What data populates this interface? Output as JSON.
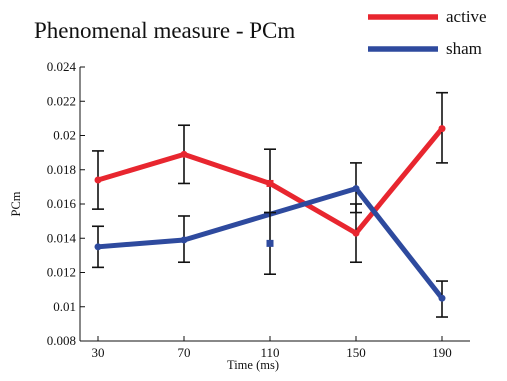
{
  "chart_data": {
    "type": "line",
    "title": "Phenomenal measure - PCm",
    "xlabel": "Time (ms)",
    "ylabel": "PCm",
    "categories": [
      "30",
      "70",
      "110",
      "150",
      "190"
    ],
    "ylim": [
      0.008,
      0.024
    ],
    "yticks": [
      "0.008",
      "0.01",
      "0.012",
      "0.014",
      "0.016",
      "0.018",
      "0.02",
      "0.022",
      "0.024"
    ],
    "legend_position": "top-right",
    "series": [
      {
        "name": "active",
        "color": "#e8262f",
        "values": [
          0.0174,
          0.0189,
          0.0172,
          0.0143,
          0.0204
        ],
        "err_low": [
          0.0157,
          0.0172,
          0.0155,
          0.0126,
          0.0184
        ],
        "err_high": [
          0.0191,
          0.0206,
          0.0192,
          0.016,
          0.0225
        ],
        "markers": [
          "circle",
          "circle",
          "square",
          "circle",
          "circle"
        ],
        "line_breaks_at": []
      },
      {
        "name": "sham",
        "color": "#2e4a9e",
        "values": [
          0.0135,
          0.0139,
          0.0137,
          0.0169,
          0.0105
        ],
        "err_low": [
          0.0123,
          0.0126,
          0.0119,
          0.0155,
          0.0094
        ],
        "err_high": [
          0.0147,
          0.0153,
          0.0155,
          0.0184,
          0.0115
        ],
        "markers": [
          "circle",
          "circle",
          "square",
          "circle",
          "circle"
        ],
        "line_skip_indices": [
          2
        ]
      }
    ]
  }
}
